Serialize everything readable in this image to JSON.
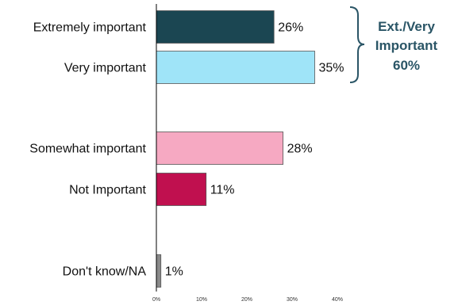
{
  "chart_data": {
    "type": "bar",
    "orientation": "horizontal",
    "categories": [
      "Extremely important",
      "Very important",
      "Somewhat important",
      "Not Important",
      "Don't know/NA"
    ],
    "values": [
      26,
      35,
      28,
      11,
      1
    ],
    "value_labels": [
      "26%",
      "35%",
      "28%",
      "11%",
      "1%"
    ],
    "bar_colors": [
      "#1b4652",
      "#9fe4f8",
      "#f6a9c2",
      "#c0104f",
      "#8a8a8a"
    ],
    "xlim": [
      0,
      40
    ],
    "x_ticks": [
      0,
      10,
      20,
      30,
      40
    ],
    "x_tick_labels": [
      "0%",
      "10%",
      "20%",
      "30%",
      "40%"
    ],
    "grid": false,
    "annotation": {
      "lines": [
        "Ext./Very",
        "Important",
        "60%"
      ],
      "color": "#2a5566",
      "bracket_categories": [
        "Extremely important",
        "Very important"
      ]
    }
  }
}
